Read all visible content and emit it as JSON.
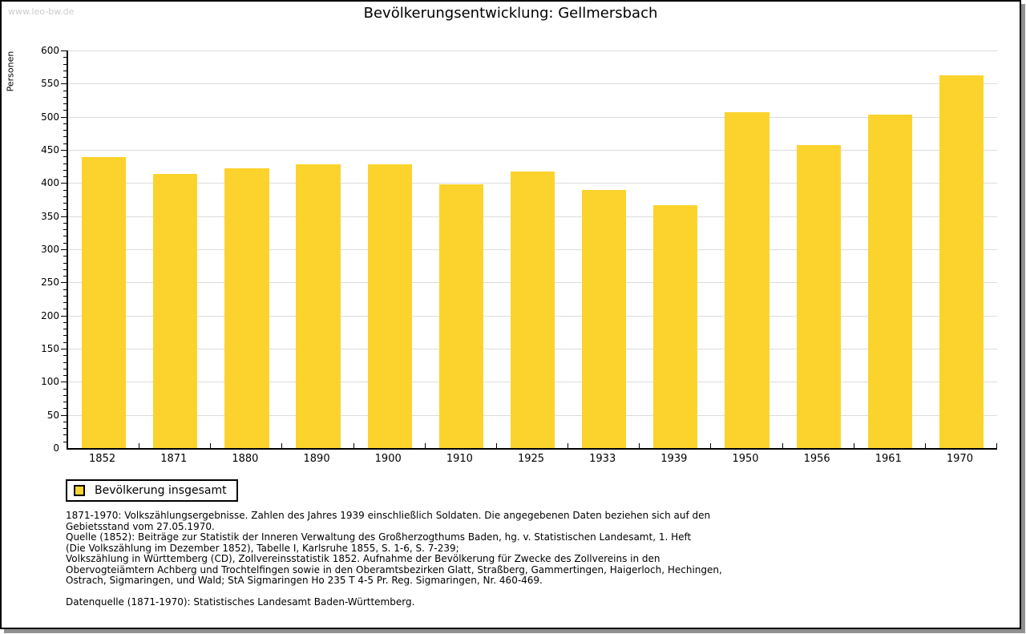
{
  "watermark": "www.leo-bw.de",
  "title": "Bevölkerungsentwicklung: Gellmersbach",
  "chart_data": {
    "type": "bar",
    "title": "Bevölkerungsentwicklung: Gellmersbach",
    "xlabel": "",
    "ylabel": "Personen",
    "categories": [
      "1852",
      "1871",
      "1880",
      "1890",
      "1900",
      "1910",
      "1925",
      "1933",
      "1939",
      "1950",
      "1956",
      "1961",
      "1970"
    ],
    "series": [
      {
        "name": "Bevölkerung insgesamt",
        "values": [
          439,
          414,
          422,
          428,
          428,
          398,
          417,
          390,
          367,
          507,
          457,
          503,
          563
        ]
      }
    ],
    "ylim": [
      0,
      600
    ],
    "ytick_major": 50,
    "ytick_minor": 10,
    "grid": true,
    "legend_position": "bottom-left"
  },
  "legend": {
    "label": "Bevölkerung insgesamt"
  },
  "colors": {
    "bar": "#FCD32C",
    "grid": "#DCDCDC",
    "axis": "#000000",
    "watermark": "#CCCCCC"
  },
  "footnotes": [
    "1871-1970: Volkszählungsergebnisse. Zahlen des Jahres 1939 einschließlich Soldaten. Die angegebenen Daten beziehen sich auf den",
    "Gebietsstand vom 27.05.1970.",
    "Quelle (1852): Beiträge zur Statistik der Inneren Verwaltung des Großherzogthums Baden, hg. v. Statistischen Landesamt, 1. Heft",
    "(Die Volkszählung im Dezember 1852), Tabelle I, Karlsruhe 1855, S. 1-6, S. 7-239;",
    "Volkszählung in Württemberg (CD), Zollvereinsstatistik 1852. Aufnahme der Bevölkerung für Zwecke des Zollvereins in den",
    "Obervogteiämtern Achberg und Trochtelfingen sowie in den Oberamtsbezirken Glatt, Straßberg, Gammertingen, Haigerloch, Hechingen,",
    "Ostrach, Sigmaringen, und Wald; StA Sigmaringen Ho 235 T 4-5 Pr. Reg. Sigmaringen, Nr. 460-469."
  ],
  "source_line": "Datenquelle (1871-1970): Statistisches Landesamt Baden-Württemberg."
}
